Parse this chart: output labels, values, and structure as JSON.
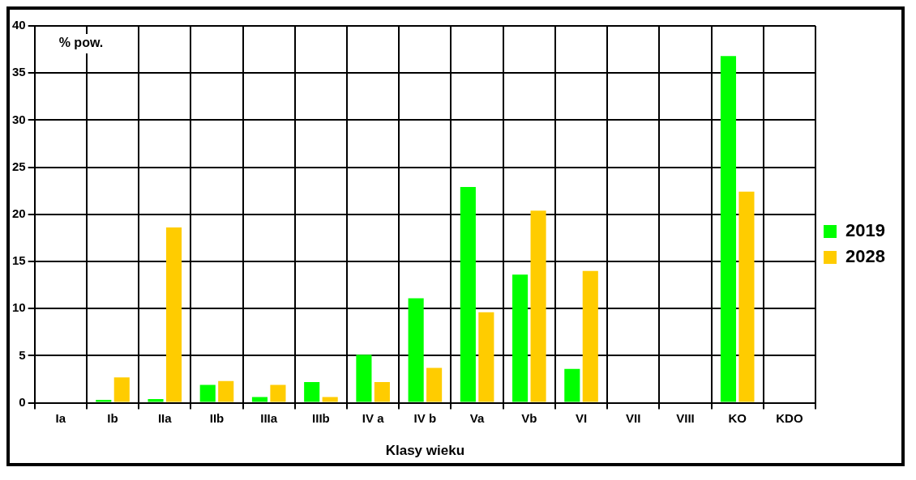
{
  "chart_data": {
    "type": "bar",
    "xlabel": "Klasy wieku",
    "ylabel": "% pow.",
    "categories": [
      "Ia",
      "Ib",
      "IIa",
      "IIb",
      "IIIa",
      "IIIb",
      "IV a",
      "IV b",
      "Va",
      "Vb",
      "VI",
      "VII",
      "VIII",
      "KO",
      "KDO"
    ],
    "series": [
      {
        "name": "2019",
        "color": "#00ff00",
        "values": [
          0,
          0.3,
          0.4,
          1.9,
          0.6,
          2.2,
          5.1,
          11.1,
          22.9,
          13.6,
          3.6,
          0,
          0,
          36.8,
          0
        ]
      },
      {
        "name": "2028",
        "color": "#ffcc00",
        "values": [
          0,
          2.7,
          18.6,
          2.3,
          1.9,
          0.6,
          2.2,
          3.7,
          9.6,
          20.4,
          14,
          0,
          0,
          22.4,
          0
        ]
      }
    ],
    "ylim": [
      0,
      40
    ],
    "yticks": [
      0,
      5,
      10,
      15,
      20,
      25,
      30,
      35,
      40
    ],
    "grid": true,
    "legend": "right"
  }
}
